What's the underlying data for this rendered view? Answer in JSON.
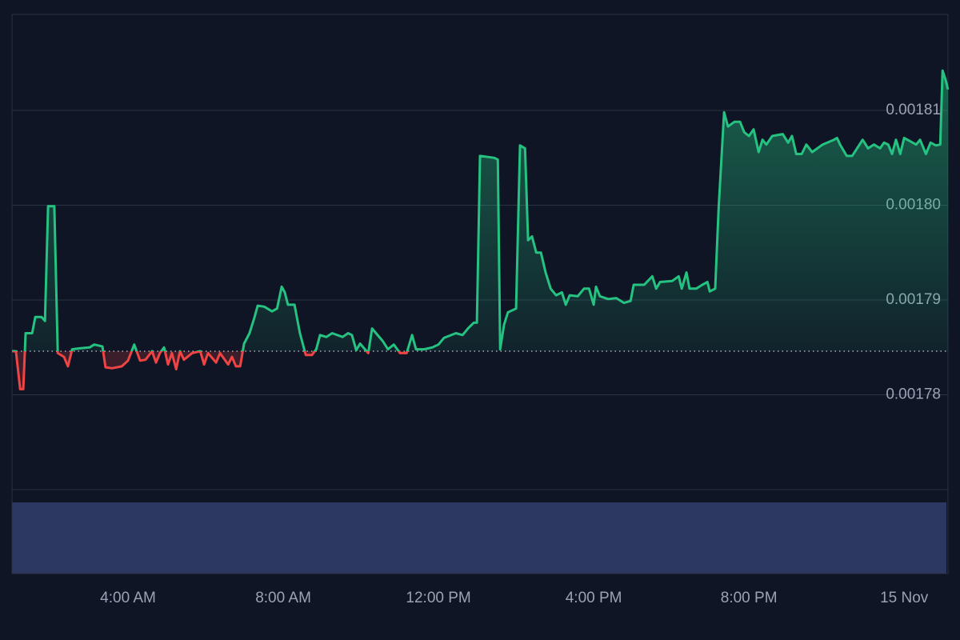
{
  "chart_data": {
    "type": "baseline",
    "x": [
      1.01,
      1.11,
      1.22,
      1.3,
      1.36,
      1.53,
      1.61,
      1.77,
      1.86,
      1.94,
      2.1,
      2.19,
      2.35,
      2.45,
      2.56,
      2.76,
      3.01,
      3.13,
      3.34,
      3.42,
      3.59,
      3.84,
      4.0,
      4.16,
      4.31,
      4.45,
      4.62,
      4.72,
      4.82,
      4.93,
      5.03,
      5.13,
      5.24,
      5.34,
      5.44,
      5.65,
      5.86,
      5.96,
      6.06,
      6.27,
      6.37,
      6.58,
      6.68,
      6.78,
      6.89,
      6.99,
      7.13,
      7.26,
      7.34,
      7.51,
      7.71,
      7.84,
      7.96,
      8.04,
      8.12,
      8.29,
      8.43,
      8.58,
      8.74,
      8.85,
      8.95,
      9.11,
      9.26,
      9.53,
      9.67,
      9.77,
      9.88,
      9.98,
      10.19,
      10.29,
      10.39,
      10.56,
      10.7,
      10.85,
      11.01,
      11.18,
      11.32,
      11.42,
      11.63,
      11.84,
      12.0,
      12.14,
      12.45,
      12.62,
      12.76,
      12.91,
      12.99,
      13.07,
      13.44,
      13.53,
      13.59,
      13.69,
      13.79,
      14.0,
      14.1,
      14.23,
      14.31,
      14.41,
      14.52,
      14.64,
      14.76,
      14.89,
      15.03,
      15.18,
      15.28,
      15.38,
      15.59,
      15.75,
      15.88,
      16.0,
      16.06,
      16.16,
      16.37,
      16.58,
      16.78,
      16.95,
      17.03,
      17.3,
      17.51,
      17.61,
      17.71,
      18.02,
      18.19,
      18.27,
      18.39,
      18.47,
      18.64,
      18.8,
      18.93,
      18.99,
      19.13,
      19.22,
      19.36,
      19.46,
      19.63,
      19.77,
      19.88,
      20.0,
      20.12,
      20.25,
      20.35,
      20.45,
      20.6,
      20.87,
      21.01,
      21.11,
      21.22,
      21.36,
      21.48,
      21.63,
      21.9,
      22.19,
      22.27,
      22.35,
      22.52,
      22.66,
      22.93,
      23.07,
      23.22,
      23.38,
      23.48,
      23.59,
      23.69,
      23.79,
      23.9,
      24.0,
      24.31,
      24.41,
      24.56,
      24.68,
      24.82,
      24.93,
      24.99,
      25.07,
      25.13
    ],
    "values": [
      0.0017846,
      0.0017846,
      0.0017806,
      0.0017806,
      0.0017865,
      0.0017865,
      0.0017882,
      0.0017882,
      0.0017878,
      0.0017999,
      0.0017999,
      0.0017844,
      0.001784,
      0.001783,
      0.0017848,
      0.0017849,
      0.001785,
      0.0017853,
      0.0017851,
      0.0017829,
      0.0017828,
      0.001783,
      0.0017836,
      0.0017853,
      0.0017836,
      0.0017837,
      0.0017846,
      0.0017834,
      0.0017844,
      0.001785,
      0.0017832,
      0.0017844,
      0.0017827,
      0.0017846,
      0.0017837,
      0.0017844,
      0.0017846,
      0.0017832,
      0.0017844,
      0.0017834,
      0.0017844,
      0.0017832,
      0.001784,
      0.001783,
      0.001783,
      0.0017854,
      0.0017865,
      0.0017882,
      0.0017894,
      0.0017893,
      0.0017888,
      0.0017891,
      0.0017914,
      0.0017908,
      0.0017895,
      0.0017895,
      0.0017865,
      0.0017842,
      0.0017842,
      0.0017848,
      0.0017863,
      0.0017861,
      0.0017865,
      0.0017861,
      0.0017865,
      0.0017863,
      0.0017847,
      0.0017854,
      0.0017844,
      0.001787,
      0.0017865,
      0.0017857,
      0.0017848,
      0.0017853,
      0.0017844,
      0.0017844,
      0.0017863,
      0.0017848,
      0.0017848,
      0.001785,
      0.0017853,
      0.001786,
      0.0017865,
      0.0017863,
      0.001787,
      0.0017876,
      0.0017876,
      0.0018052,
      0.001805,
      0.0018048,
      0.0017848,
      0.0017874,
      0.0017887,
      0.0017891,
      0.0018063,
      0.001806,
      0.0017963,
      0.0017967,
      0.001795,
      0.001795,
      0.0017929,
      0.0017912,
      0.0017905,
      0.0017908,
      0.0017895,
      0.0017905,
      0.0017904,
      0.0017912,
      0.0017912,
      0.0017895,
      0.0017914,
      0.0017904,
      0.0017901,
      0.0017902,
      0.0017897,
      0.0017899,
      0.0017916,
      0.0017916,
      0.0017925,
      0.0017912,
      0.0017919,
      0.001792,
      0.0017925,
      0.0017912,
      0.0017929,
      0.0017912,
      0.0017912,
      0.0017916,
      0.0017919,
      0.0017909,
      0.0017912,
      0.0017997,
      0.0018098,
      0.0018083,
      0.0018088,
      0.0018088,
      0.0018077,
      0.0018073,
      0.001808,
      0.0018056,
      0.0018069,
      0.0018064,
      0.0018073,
      0.0018075,
      0.0018066,
      0.0018073,
      0.0018054,
      0.0018054,
      0.0018064,
      0.0018056,
      0.0018064,
      0.0018069,
      0.0018071,
      0.0018064,
      0.0018052,
      0.0018052,
      0.0018069,
      0.001806,
      0.0018064,
      0.001806,
      0.0018066,
      0.0018064,
      0.0018054,
      0.0018069,
      0.0018054,
      0.0018071,
      0.0018064,
      0.0018069,
      0.0018054,
      0.0018066,
      0.0018063,
      0.0018064,
      0.0018142,
      0.0018132,
      0.0018122
    ],
    "baseline": 0.0017846,
    "color_up": "#26c281",
    "color_down": "#ef4444",
    "xlim": [
      1.01,
      25.13
    ],
    "ylim": [
      0.00177,
      0.00182
    ],
    "xticks": [
      {
        "value": 4,
        "label": "4:00 AM"
      },
      {
        "value": 8,
        "label": "8:00 AM"
      },
      {
        "value": 12,
        "label": "12:00 PM"
      },
      {
        "value": 16,
        "label": "4:00 PM"
      },
      {
        "value": 20,
        "label": "8:00 PM"
      },
      {
        "value": 24,
        "label": "15 Nov"
      }
    ],
    "yticks": [
      0.00178,
      0.00179,
      {
        "value": 0.0018,
        "label": "0.00180"
      },
      0.00181
    ],
    "grid": true
  }
}
